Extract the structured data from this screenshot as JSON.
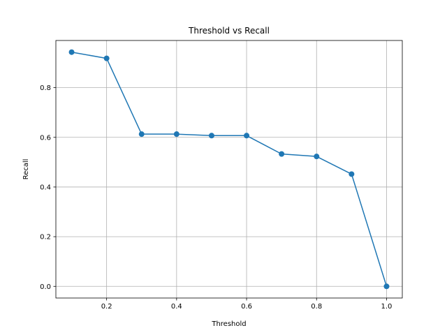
{
  "chart_data": {
    "type": "line",
    "title": "Threshold vs Recall",
    "xlabel": "Threshold",
    "ylabel": "Recall",
    "x": [
      0.1,
      0.2,
      0.3,
      0.4,
      0.5,
      0.6,
      0.7,
      0.8,
      0.9,
      1.0
    ],
    "series": [
      {
        "values": [
          0.943,
          0.918,
          0.613,
          0.613,
          0.607,
          0.607,
          0.533,
          0.523,
          0.452,
          0.0
        ],
        "color": "#1f77b4",
        "marker": "circle"
      }
    ],
    "xlim": [
      0.055,
      1.045
    ],
    "ylim": [
      -0.047,
      0.99
    ],
    "xticks": [
      "0.2",
      "0.4",
      "0.6",
      "0.8",
      "1.0"
    ],
    "yticks": [
      "0.0",
      "0.2",
      "0.4",
      "0.6",
      "0.8"
    ],
    "grid": true
  }
}
